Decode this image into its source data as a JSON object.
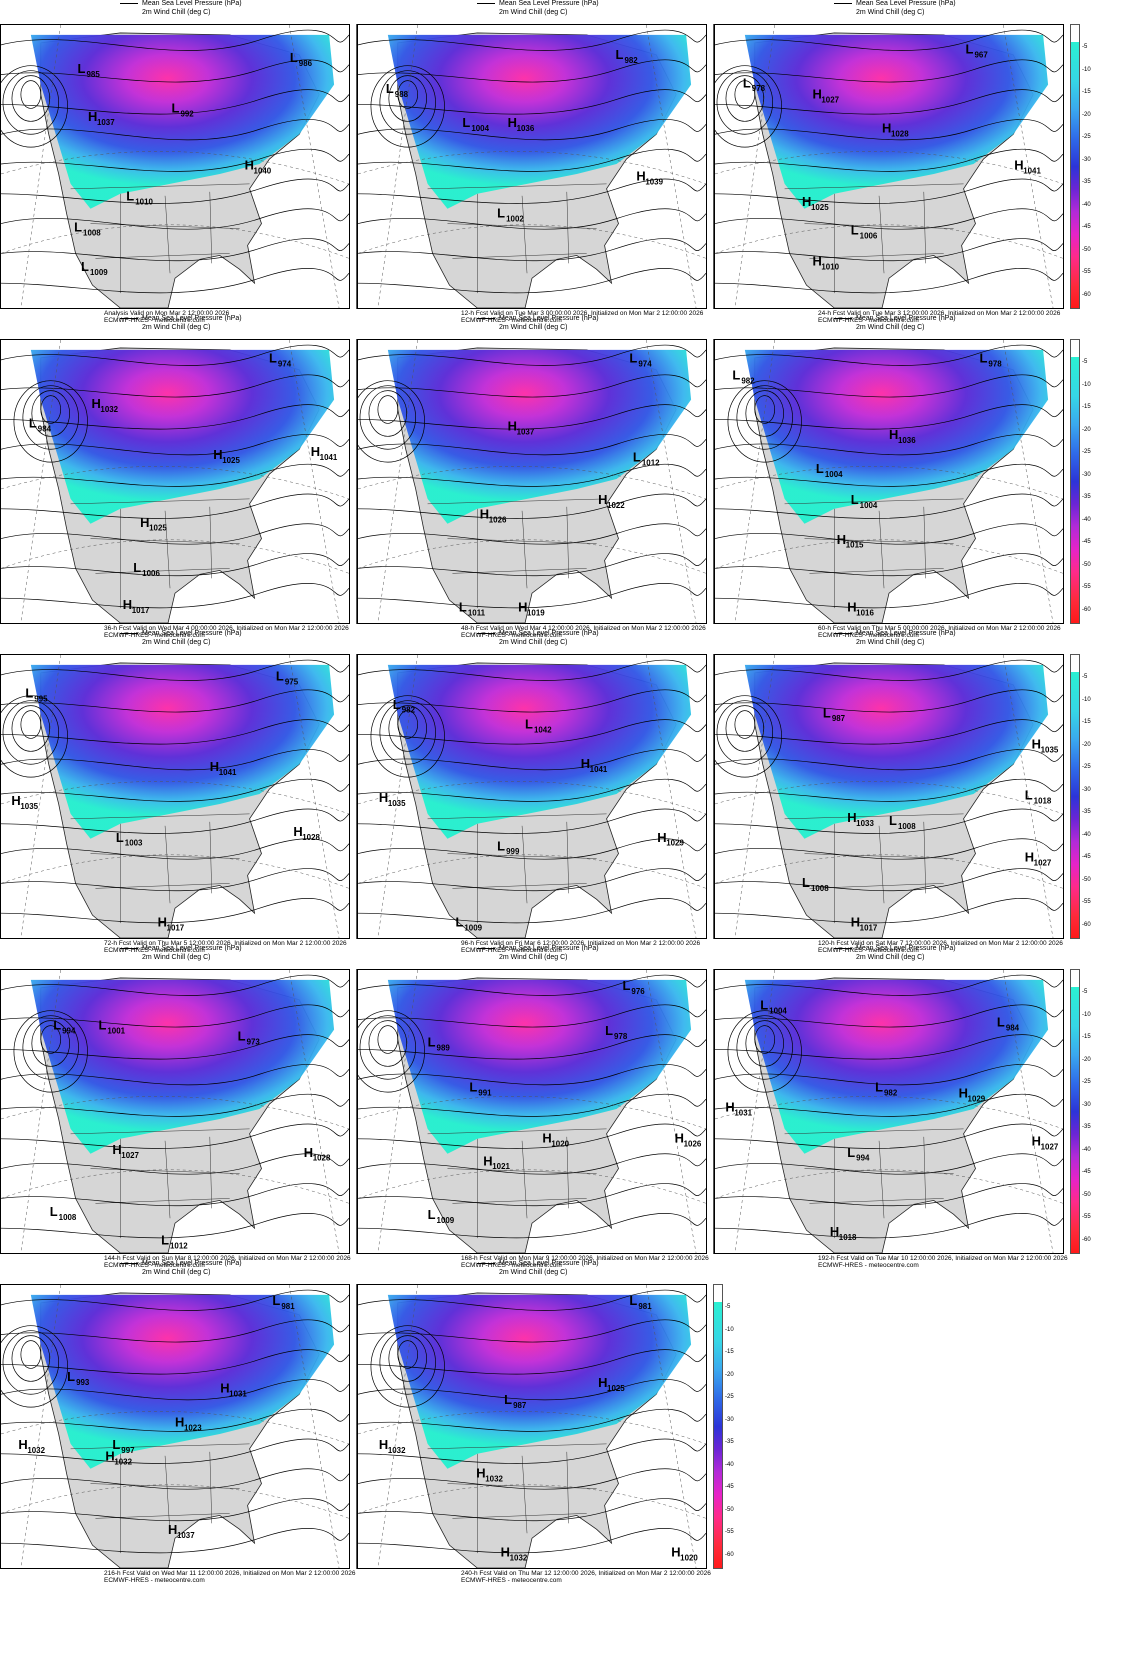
{
  "legend": {
    "mslp": "Mean Sea Level Pressure (hPa)",
    "wind_chill": "2m Wind Chill (deg C)"
  },
  "colorbar_ticks": [
    "-5",
    "-10",
    "-15",
    "-20",
    "-25",
    "-30",
    "-35",
    "-40",
    "-45",
    "-50",
    "-55",
    "-60"
  ],
  "source": "ECMWF-HRES - meteocentre.com",
  "panels": [
    {
      "caption": "Analysis Valid on Mon Mar  2 12:00:00 2026",
      "centers": [
        {
          "t": "L",
          "v": "985"
        },
        {
          "t": "L",
          "v": "986"
        },
        {
          "t": "H",
          "v": "1037"
        },
        {
          "t": "L",
          "v": "992"
        },
        {
          "t": "H",
          "v": "1040"
        },
        {
          "t": "L",
          "v": "1010"
        },
        {
          "t": "L",
          "v": "1008"
        },
        {
          "t": "L",
          "v": "1009"
        }
      ]
    },
    {
      "caption": "12-h Fcst Valid on Tue Mar  3 00:00:00 2026, Initialized on Mon Mar  2 12:00:00 2026",
      "centers": [
        {
          "t": "L",
          "v": "988"
        },
        {
          "t": "L",
          "v": "982"
        },
        {
          "t": "L",
          "v": "1004"
        },
        {
          "t": "H",
          "v": "1036"
        },
        {
          "t": "H",
          "v": "1039"
        },
        {
          "t": "L",
          "v": "1002"
        }
      ]
    },
    {
      "caption": "24-h Fcst Valid on Tue Mar  3 12:00:00 2026, Initialized on Mon Mar  2 12:00:00 2026",
      "centers": [
        {
          "t": "L",
          "v": "978"
        },
        {
          "t": "L",
          "v": "967"
        },
        {
          "t": "H",
          "v": "1027"
        },
        {
          "t": "H",
          "v": "1028"
        },
        {
          "t": "H",
          "v": "1041"
        },
        {
          "t": "H",
          "v": "1025"
        },
        {
          "t": "L",
          "v": "1006"
        },
        {
          "t": "H",
          "v": "1010"
        }
      ]
    },
    {
      "caption": "36-h Fcst Valid on Wed Mar  4 00:00:00 2026, Initialized on Mon Mar  2 12:00:00 2026",
      "centers": [
        {
          "t": "L",
          "v": "984"
        },
        {
          "t": "L",
          "v": "974"
        },
        {
          "t": "H",
          "v": "1032"
        },
        {
          "t": "H",
          "v": "1025"
        },
        {
          "t": "H",
          "v": "1041"
        },
        {
          "t": "H",
          "v": "1025"
        },
        {
          "t": "L",
          "v": "1006"
        },
        {
          "t": "H",
          "v": "1017"
        }
      ]
    },
    {
      "caption": "48-h Fcst Valid on Wed Mar  4 12:00:00 2026, Initialized on Mon Mar  2 12:00:00 2026",
      "centers": [
        {
          "t": "L",
          "v": "974"
        },
        {
          "t": "H",
          "v": "1037"
        },
        {
          "t": "L",
          "v": "1012"
        },
        {
          "t": "H",
          "v": "1026"
        },
        {
          "t": "H",
          "v": "1022"
        },
        {
          "t": "L",
          "v": "1011"
        },
        {
          "t": "H",
          "v": "1019"
        }
      ]
    },
    {
      "caption": "60-h Fcst Valid on Thu Mar  5 00:00:00 2026, Initialized on Mon Mar  2 12:00:00 2026",
      "centers": [
        {
          "t": "L",
          "v": "982"
        },
        {
          "t": "L",
          "v": "978"
        },
        {
          "t": "H",
          "v": "1036"
        },
        {
          "t": "L",
          "v": "1004"
        },
        {
          "t": "L",
          "v": "1004"
        },
        {
          "t": "H",
          "v": "1015"
        },
        {
          "t": "H",
          "v": "1016"
        }
      ]
    },
    {
      "caption": "72-h Fcst Valid on Thu Mar  5 12:00:00 2026, Initialized on Mon Mar  2 12:00:00 2026",
      "centers": [
        {
          "t": "L",
          "v": "995"
        },
        {
          "t": "L",
          "v": "975"
        },
        {
          "t": "H",
          "v": "1035"
        },
        {
          "t": "H",
          "v": "1041"
        },
        {
          "t": "L",
          "v": "1003"
        },
        {
          "t": "H",
          "v": "1028"
        },
        {
          "t": "H",
          "v": "1017"
        }
      ]
    },
    {
      "caption": "96-h Fcst Valid on Fri Mar  6 12:00:00 2026, Initialized on Mon Mar  2 12:00:00 2026",
      "centers": [
        {
          "t": "L",
          "v": "982"
        },
        {
          "t": "H",
          "v": "1035"
        },
        {
          "t": "L",
          "v": "1042"
        },
        {
          "t": "H",
          "v": "1041"
        },
        {
          "t": "L",
          "v": "999"
        },
        {
          "t": "H",
          "v": "1029"
        },
        {
          "t": "L",
          "v": "1009"
        }
      ]
    },
    {
      "caption": "120-h Fcst Valid on Sat Mar  7 12:00:00 2026, Initialized on Mon Mar  2 12:00:00 2026",
      "centers": [
        {
          "t": "L",
          "v": "987"
        },
        {
          "t": "H",
          "v": "1035"
        },
        {
          "t": "L",
          "v": "1018"
        },
        {
          "t": "H",
          "v": "1033"
        },
        {
          "t": "L",
          "v": "1008"
        },
        {
          "t": "H",
          "v": "1027"
        },
        {
          "t": "L",
          "v": "1008"
        },
        {
          "t": "H",
          "v": "1017"
        }
      ]
    },
    {
      "caption": "144-h Fcst Valid on Sun Mar  8 12:00:00 2026, Initialized on Mon Mar  2 12:00:00 2026",
      "centers": [
        {
          "t": "L",
          "v": "994"
        },
        {
          "t": "L",
          "v": "1001"
        },
        {
          "t": "L",
          "v": "973"
        },
        {
          "t": "H",
          "v": "1027"
        },
        {
          "t": "H",
          "v": "1028"
        },
        {
          "t": "L",
          "v": "1008"
        },
        {
          "t": "L",
          "v": "1012"
        }
      ]
    },
    {
      "caption": "168-h Fcst Valid on Mon Mar  9 12:00:00 2026, Initialized on Mon Mar  2 12:00:00 2026",
      "centers": [
        {
          "t": "L",
          "v": "976"
        },
        {
          "t": "L",
          "v": "989"
        },
        {
          "t": "L",
          "v": "978"
        },
        {
          "t": "L",
          "v": "991"
        },
        {
          "t": "H",
          "v": "1020"
        },
        {
          "t": "H",
          "v": "1026"
        },
        {
          "t": "H",
          "v": "1021"
        },
        {
          "t": "L",
          "v": "1009"
        }
      ]
    },
    {
      "caption": "192-h Fcst Valid on Tue Mar 10 12:00:00 2026, Initialized on Mon Mar  2 12:00:00 2026",
      "centers": [
        {
          "t": "L",
          "v": "1004"
        },
        {
          "t": "L",
          "v": "984"
        },
        {
          "t": "H",
          "v": "1031"
        },
        {
          "t": "L",
          "v": "982"
        },
        {
          "t": "H",
          "v": "1029"
        },
        {
          "t": "L",
          "v": "994"
        },
        {
          "t": "H",
          "v": "1027"
        },
        {
          "t": "H",
          "v": "1018"
        }
      ]
    },
    {
      "caption": "216-h Fcst Valid on Wed Mar 11 12:00:00 2026, Initialized on Mon Mar  2 12:00:00 2026",
      "centers": [
        {
          "t": "L",
          "v": "981"
        },
        {
          "t": "L",
          "v": "993"
        },
        {
          "t": "L",
          "v": "997"
        },
        {
          "t": "H",
          "v": "1031"
        },
        {
          "t": "H",
          "v": "1032"
        },
        {
          "t": "H",
          "v": "1032"
        },
        {
          "t": "H",
          "v": "1037"
        },
        {
          "t": "H",
          "v": "1023"
        }
      ]
    },
    {
      "caption": "240-h Fcst Valid on Thu Mar 12 12:00:00 2026, Initialized on Mon Mar  2 12:00:00 2026",
      "centers": [
        {
          "t": "L",
          "v": "981"
        },
        {
          "t": "L",
          "v": "987"
        },
        {
          "t": "H",
          "v": "1025"
        },
        {
          "t": "H",
          "v": "1032"
        },
        {
          "t": "H",
          "v": "1032"
        },
        {
          "t": "H",
          "v": "1032"
        },
        {
          "t": "H",
          "v": "1020"
        }
      ]
    }
  ]
}
